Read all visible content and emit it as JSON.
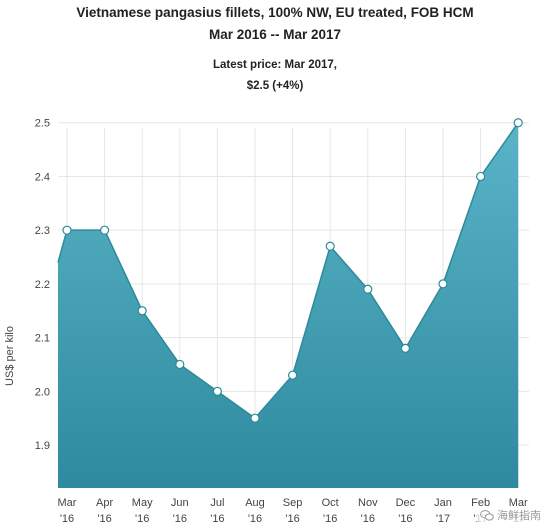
{
  "header": {
    "title_line1": "Vietnamese pangasius fillets, 100% NW, EU treated, FOB HCM",
    "title_line2": "Mar 2016 -- Mar 2017",
    "subtitle_line1": "Latest price: Mar 2017,",
    "subtitle_line2": "$2.5 (+4%)"
  },
  "chart_data": {
    "type": "area",
    "title": "Vietnamese pangasius fillets, 100% NW, EU treated, FOB HCM",
    "subtitle": "Mar 2016 -- Mar 2017",
    "ylabel": "US$ per kilo",
    "xlabel": "",
    "categories": [
      [
        "Mar",
        "'16"
      ],
      [
        "Apr",
        "'16"
      ],
      [
        "May",
        "'16"
      ],
      [
        "Jun",
        "'16"
      ],
      [
        "Jul",
        "'16"
      ],
      [
        "Aug",
        "'16"
      ],
      [
        "Sep",
        "'16"
      ],
      [
        "Oct",
        "'16"
      ],
      [
        "Nov",
        "'16"
      ],
      [
        "Dec",
        "'16"
      ],
      [
        "Jan",
        "'17"
      ],
      [
        "Feb",
        "'17"
      ],
      [
        "Mar",
        "'17"
      ]
    ],
    "values": [
      2.3,
      2.3,
      2.15,
      2.05,
      2.0,
      1.95,
      2.03,
      2.27,
      2.19,
      2.08,
      2.2,
      2.4,
      2.5
    ],
    "left_edge_value": 2.24,
    "ylim": [
      1.82,
      2.52
    ],
    "yticks": [
      "1.9",
      "2.0",
      "2.1",
      "2.2",
      "2.3",
      "2.4",
      "2.5"
    ],
    "grid": true,
    "fill_top": "#5ab4c8",
    "fill_bottom": "#2e8a9e",
    "line_color": "#2c8a9c",
    "marker_fill": "#ffffff",
    "marker_stroke": "#2c8a9c"
  },
  "watermark": {
    "text": "海鲜指南"
  }
}
